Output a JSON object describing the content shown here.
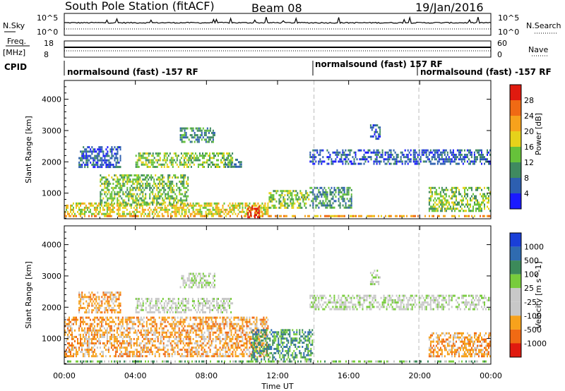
{
  "header": {
    "station": "South Pole Station (fitACF)",
    "beam": "Beam 08",
    "date": "19/Jan/2016"
  },
  "top_panels": {
    "nsky_label": "N.Sky",
    "nsearch_label": "N.Search",
    "noise_ticks": [
      "10^5",
      "10^0"
    ],
    "freq_label": "Freq.",
    "freq_unit": "[MHz]",
    "freq_ticks": [
      "18",
      "8"
    ],
    "nave_label": "Nave",
    "nave_ticks": [
      "60",
      "0"
    ],
    "cpid_label": "CPID",
    "cpid_segments": [
      {
        "text": "normalsound (fast) -157 RF",
        "start_hour": 0.0
      },
      {
        "text": "normalsound (fast) 157 RF",
        "start_hour": 14.05
      },
      {
        "text": "normalsound (fast) -157 RF",
        "start_hour": 19.95
      }
    ]
  },
  "chart_data": [
    {
      "type": "heatmap",
      "title": "",
      "parameter": "Power",
      "xlabel": "Time UT",
      "ylabel": "Slant Range [km]",
      "x_ticks": [
        "00:00",
        "04:00",
        "08:00",
        "12:00",
        "16:00",
        "20:00",
        "00:00"
      ],
      "xlim_hours": [
        0,
        24
      ],
      "y_ticks": [
        1000,
        2000,
        3000,
        4000
      ],
      "ylim": [
        180,
        4600
      ],
      "colorbar_label": "Power [dB]",
      "colorbar_ticks": [
        4,
        8,
        12,
        16,
        20,
        24,
        28
      ],
      "colorbar_colors": [
        "#1a1aff",
        "#2d5fb0",
        "#3f8a60",
        "#66c23a",
        "#e6d21a",
        "#f7a21c",
        "#f06a14",
        "#e01a0f"
      ],
      "gap_lines_hours": [
        14.05,
        19.95
      ],
      "regions": [
        {
          "t0": 0.0,
          "t1": 24.0,
          "r0": 200,
          "r1": 300,
          "level": 5
        },
        {
          "t0": 0.0,
          "t1": 11.5,
          "r0": 300,
          "r1": 700,
          "level": 4
        },
        {
          "t0": 10.3,
          "t1": 11.0,
          "r0": 200,
          "r1": 600,
          "level": 7
        },
        {
          "t0": 0.8,
          "t1": 3.2,
          "r0": 1800,
          "r1": 2500,
          "level": 1
        },
        {
          "t0": 2.0,
          "t1": 7.0,
          "r0": 600,
          "r1": 1600,
          "level": 3
        },
        {
          "t0": 4.0,
          "t1": 9.5,
          "r0": 1800,
          "r1": 2300,
          "level": 3
        },
        {
          "t0": 6.5,
          "t1": 8.5,
          "r0": 2600,
          "r1": 3100,
          "level": 2
        },
        {
          "t0": 9.0,
          "t1": 10.0,
          "r0": 1800,
          "r1": 2100,
          "level": 2
        },
        {
          "t0": 11.5,
          "t1": 13.8,
          "r0": 500,
          "r1": 1100,
          "level": 3
        },
        {
          "t0": 13.8,
          "t1": 16.2,
          "r0": 500,
          "r1": 1200,
          "level": 2
        },
        {
          "t0": 13.8,
          "t1": 24.0,
          "r0": 1900,
          "r1": 2400,
          "level": 1
        },
        {
          "t0": 17.2,
          "t1": 17.8,
          "r0": 2700,
          "r1": 3200,
          "level": 1
        },
        {
          "t0": 20.5,
          "t1": 24.0,
          "r0": 400,
          "r1": 1200,
          "level": 3
        }
      ]
    },
    {
      "type": "heatmap",
      "title": "",
      "parameter": "Velocity",
      "xlabel": "Time UT",
      "ylabel": "Slant Range [km]",
      "x_ticks": [
        "00:00",
        "04:00",
        "08:00",
        "12:00",
        "16:00",
        "20:00",
        "00:00"
      ],
      "xlim_hours": [
        0,
        24
      ],
      "y_ticks": [
        1000,
        2000,
        3000,
        4000
      ],
      "ylim": [
        180,
        4600
      ],
      "colorbar_label": "Velocity [m s^-1]",
      "colorbar_ticks": [
        1000,
        500,
        100,
        25,
        -25,
        -100,
        -500,
        -1000
      ],
      "colorbar_colors": [
        "#1a3fd8",
        "#2f6bb0",
        "#3c8a5a",
        "#78cc3c",
        "#c8c8c8",
        "#c8c8c8",
        "#f7a21c",
        "#f06a14",
        "#e01a0f"
      ],
      "gap_lines_hours": [
        14.05,
        19.95
      ],
      "regions": [
        {
          "t0": 0.0,
          "t1": 24.0,
          "r0": 200,
          "r1": 300,
          "level": 3
        },
        {
          "t0": 0.0,
          "t1": 11.5,
          "r0": 400,
          "r1": 1700,
          "level": 6
        },
        {
          "t0": 10.5,
          "t1": 14.0,
          "r0": 300,
          "r1": 1300,
          "level": 2
        },
        {
          "t0": 0.8,
          "t1": 3.2,
          "r0": 1800,
          "r1": 2500,
          "level": 6
        },
        {
          "t0": 4.0,
          "t1": 9.5,
          "r0": 1800,
          "r1": 2300,
          "level": 4
        },
        {
          "t0": 6.5,
          "t1": 8.5,
          "r0": 2600,
          "r1": 3100,
          "level": 4
        },
        {
          "t0": 13.8,
          "t1": 24.0,
          "r0": 1900,
          "r1": 2400,
          "level": 4
        },
        {
          "t0": 17.2,
          "t1": 17.8,
          "r0": 2700,
          "r1": 3200,
          "level": 4
        },
        {
          "t0": 20.5,
          "t1": 24.0,
          "r0": 400,
          "r1": 1200,
          "level": 6
        }
      ]
    }
  ]
}
